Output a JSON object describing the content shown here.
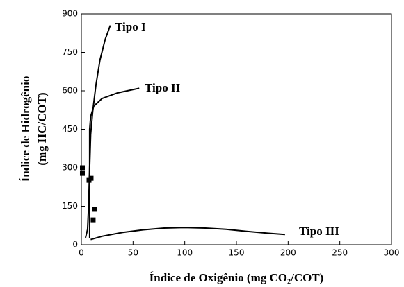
{
  "chart_data": {
    "type": "scatter",
    "xlabel": "Índice de Oxigênio (mg CO₂/COT)",
    "ylabel": [
      "Índice de Hidrogênio",
      "(mg HC/COT)"
    ],
    "xlim": [
      0,
      300
    ],
    "xticks": [
      0,
      50,
      100,
      150,
      200,
      250,
      300
    ],
    "ylim": [
      0,
      900
    ],
    "yticks": [
      0,
      150,
      300,
      450,
      600,
      750,
      900
    ],
    "points": {
      "color": "#000000",
      "x": [
        1,
        1,
        7.4,
        9.4,
        12.8,
        11.4
      ],
      "values": [
        300,
        278,
        251,
        259,
        138,
        97
      ]
    },
    "series": [
      {
        "name": "Tipo I",
        "color": "#000000",
        "x": [
          4,
          6,
          7,
          8,
          9,
          11,
          14,
          18,
          23,
          28
        ],
        "values": [
          27,
          60,
          150,
          300,
          430,
          520,
          620,
          720,
          800,
          855
        ]
      },
      {
        "name": "Tipo II",
        "color": "#000000",
        "x": [
          8,
          8,
          8,
          9,
          12,
          20,
          35,
          56
        ],
        "values": [
          25,
          200,
          450,
          500,
          540,
          570,
          592,
          610
        ]
      },
      {
        "name": "Tipo III",
        "color": "#000000",
        "x": [
          9,
          20,
          40,
          60,
          80,
          100,
          120,
          140,
          160,
          180,
          197
        ],
        "values": [
          20,
          33,
          48,
          58,
          65,
          67,
          65,
          60,
          52,
          45,
          40
        ]
      }
    ]
  }
}
